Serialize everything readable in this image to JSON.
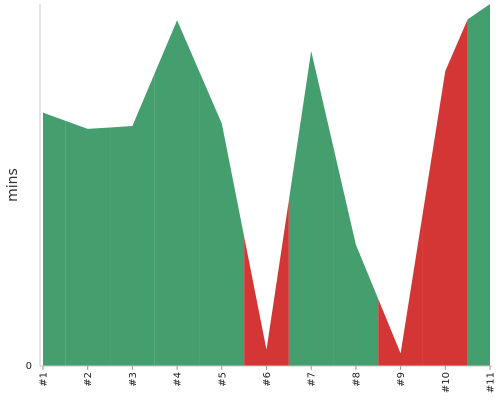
{
  "chart_data": {
    "type": "area",
    "categories": [
      "#1",
      "#2",
      "#3",
      "#4",
      "#5",
      "#6",
      "#7",
      "#8",
      "#9",
      "#10",
      "#11"
    ],
    "values": [
      70,
      65.5,
      66.3,
      95.5,
      67,
      4.5,
      87,
      33.5,
      3.5,
      81.5,
      110
    ],
    "status": [
      "pass",
      "pass",
      "pass",
      "pass",
      "pass",
      "fail",
      "pass",
      "pass",
      "fail",
      "fail",
      "pass"
    ],
    "colors": {
      "pass": "#449e6d",
      "fail": "#d43636"
    },
    "ylabel": "mins",
    "yticks": [
      "0"
    ],
    "ylim": [
      0,
      100
    ],
    "grid": false,
    "legend": "none"
  }
}
